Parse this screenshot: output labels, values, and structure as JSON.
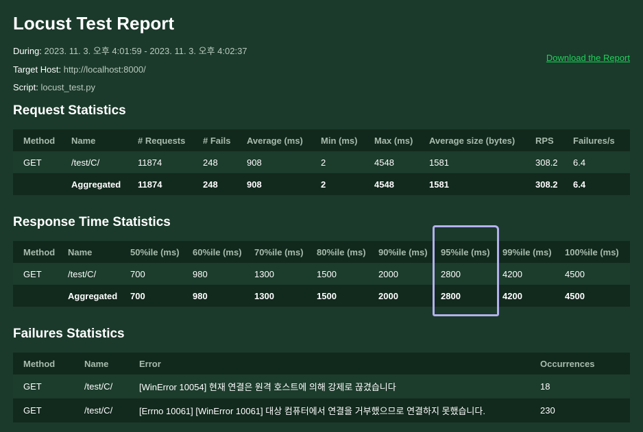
{
  "report": {
    "title": "Locust Test Report",
    "during_label": "During:",
    "during_value": "2023. 11. 3. 오후 4:01:59 - 2023. 11. 3. 오후 4:02:37",
    "host_label": "Target Host:",
    "host_value": "http://localhost:8000/",
    "script_label": "Script:",
    "script_value": "locust_test.py",
    "download_label": "Download the Report"
  },
  "request_stats": {
    "title": "Request Statistics",
    "headers": [
      "Method",
      "Name",
      "# Requests",
      "# Fails",
      "Average (ms)",
      "Min (ms)",
      "Max (ms)",
      "Average size (bytes)",
      "RPS",
      "Failures/s"
    ],
    "rows": [
      [
        "GET",
        "/test/C/",
        "11874",
        "248",
        "908",
        "2",
        "4548",
        "1581",
        "308.2",
        "6.4"
      ],
      [
        "",
        "Aggregated",
        "11874",
        "248",
        "908",
        "2",
        "4548",
        "1581",
        "308.2",
        "6.4"
      ]
    ]
  },
  "response_stats": {
    "title": "Response Time Statistics",
    "headers": [
      "Method",
      "Name",
      "50%ile (ms)",
      "60%ile (ms)",
      "70%ile (ms)",
      "80%ile (ms)",
      "90%ile (ms)",
      "95%ile (ms)",
      "99%ile (ms)",
      "100%ile (ms)"
    ],
    "rows": [
      [
        "GET",
        "/test/C/",
        "700",
        "980",
        "1300",
        "1500",
        "2000",
        "2800",
        "4200",
        "4500"
      ],
      [
        "",
        "Aggregated",
        "700",
        "980",
        "1300",
        "1500",
        "2000",
        "2800",
        "4200",
        "4500"
      ]
    ]
  },
  "failure_stats": {
    "title": "Failures Statistics",
    "headers": [
      "Method",
      "Name",
      "Error",
      "Occurrences"
    ],
    "rows": [
      [
        "GET",
        "/test/C/",
        "[WinError 10054] 현재 연결은 원격 호스트에 의해 강제로 끊겼습니다",
        "18"
      ],
      [
        "GET",
        "/test/C/",
        "[Errno 10061] [WinError 10061] 대상 컴퓨터에서 연결을 거부했으므로 연결하지 못했습니다.",
        "230"
      ]
    ]
  },
  "colors": {
    "page_background": "#1b3a2b",
    "header_background": "#11291c",
    "link": "#1ed15a",
    "annotation": "#b4b0ee"
  }
}
